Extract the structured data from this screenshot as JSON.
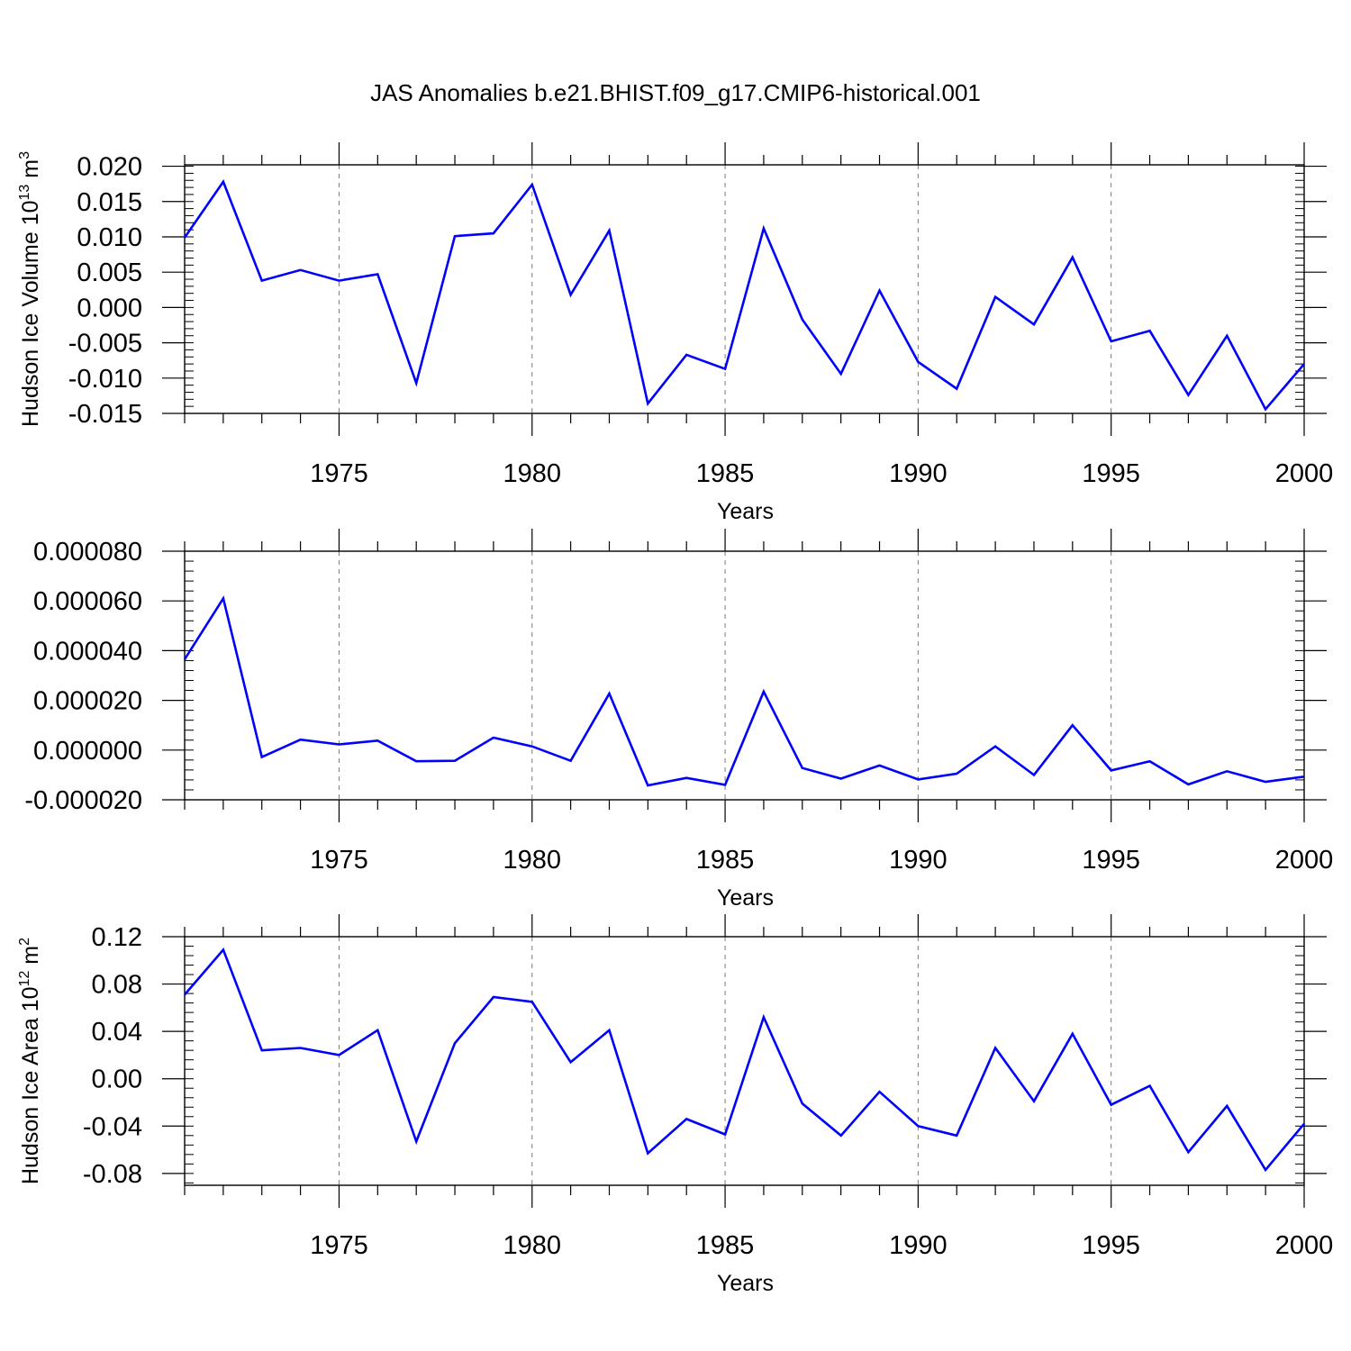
{
  "figure": {
    "title": "JAS Anomalies b.e21.BHIST.f09_g17.CMIP6-historical.001"
  },
  "chart_data": [
    {
      "type": "line",
      "ylabel": "Hudson Ice Volume 10",
      "ylabel_exp": "13",
      "ylabel_unit": " m",
      "ylabel_unit_exp": "3",
      "xlabel": "Years",
      "xlim": [
        1971,
        2000
      ],
      "ylim": [
        -0.015,
        0.0202
      ],
      "xticks": [
        1975,
        1980,
        1985,
        1990,
        1995,
        2000
      ],
      "xtick_labels": [
        "1975",
        "1980",
        "1985",
        "1990",
        "1995",
        "2000"
      ],
      "yticks": [
        0.02,
        0.015,
        0.01,
        0.005,
        0.0,
        -0.005,
        -0.01,
        -0.015
      ],
      "ytick_labels": [
        "0.020",
        "0.015",
        "0.010",
        "0.005",
        "0.000",
        "-0.005",
        "-0.010",
        "-0.015"
      ],
      "grid": "dashed vertical at major x ticks",
      "line_color": "#0000ff",
      "series": [
        {
          "x": [
            1971,
            1972,
            1973,
            1974,
            1975,
            1976,
            1977,
            1978,
            1979,
            1980,
            1981,
            1982,
            1983,
            1984,
            1985,
            1986,
            1987,
            1988,
            1989,
            1990,
            1991,
            1992,
            1993,
            1994,
            1995,
            1996,
            1997,
            1998,
            1999,
            2000
          ],
          "values": [
            0.0099,
            0.0178,
            0.0038,
            0.0053,
            0.0038,
            0.0047,
            -0.0107,
            0.0101,
            0.0105,
            0.0174,
            0.0018,
            0.0109,
            -0.0136,
            -0.0067,
            -0.0087,
            0.0112,
            -0.0017,
            -0.0094,
            0.0024,
            -0.0077,
            -0.0115,
            0.0015,
            -0.0024,
            0.0071,
            -0.0048,
            -0.0033,
            -0.0124,
            -0.004,
            -0.0144,
            -0.008
          ]
        }
      ]
    },
    {
      "type": "line",
      "ylabel": "",
      "xlabel": "Years",
      "xlim": [
        1971,
        2000
      ],
      "ylim": [
        -2e-05,
        8e-05
      ],
      "xticks": [
        1975,
        1980,
        1985,
        1990,
        1995,
        2000
      ],
      "xtick_labels": [
        "1975",
        "1980",
        "1985",
        "1990",
        "1995",
        "2000"
      ],
      "yticks": [
        8e-05,
        6e-05,
        4e-05,
        2e-05,
        0.0,
        -2e-05
      ],
      "ytick_labels": [
        "0.000080",
        "0.000060",
        "0.000040",
        "0.000020",
        "0.000000",
        "-0.000020"
      ],
      "grid": "dashed vertical at major x ticks",
      "line_color": "#0000ff",
      "series": [
        {
          "x": [
            1971,
            1972,
            1973,
            1974,
            1975,
            1976,
            1977,
            1978,
            1979,
            1980,
            1981,
            1982,
            1983,
            1984,
            1985,
            1986,
            1987,
            1988,
            1989,
            1990,
            1991,
            1992,
            1993,
            1994,
            1995,
            1996,
            1997,
            1998,
            1999,
            2000
          ],
          "values": [
            3.65e-05,
            6.1e-05,
            -2.8e-06,
            4.2e-06,
            2.3e-06,
            3.8e-06,
            -4.5e-06,
            -4.3e-06,
            5e-06,
            1.5e-06,
            -4.3e-06,
            2.27e-05,
            -1.42e-05,
            -1.12e-05,
            -1.4e-05,
            2.35e-05,
            -7.2e-06,
            -1.15e-05,
            -6.2e-06,
            -1.18e-05,
            -9.5e-06,
            1.5e-06,
            -1e-05,
            1e-05,
            -8.2e-06,
            -4.5e-06,
            -1.38e-05,
            -8.5e-06,
            -1.28e-05,
            -1.07e-05
          ]
        }
      ]
    },
    {
      "type": "line",
      "ylabel": "Hudson Ice Area 10",
      "ylabel_exp": "12",
      "ylabel_unit": " m",
      "ylabel_unit_exp": "2",
      "xlabel": "Years",
      "xlim": [
        1971,
        2000
      ],
      "ylim": [
        -0.09,
        0.12
      ],
      "xticks": [
        1975,
        1980,
        1985,
        1990,
        1995,
        2000
      ],
      "xtick_labels": [
        "1975",
        "1980",
        "1985",
        "1990",
        "1995",
        "2000"
      ],
      "yticks": [
        0.12,
        0.08,
        0.04,
        0.0,
        -0.04,
        -0.08
      ],
      "ytick_labels": [
        "0.12",
        "0.08",
        "0.04",
        "0.00",
        "-0.04",
        "-0.08"
      ],
      "grid": "dashed vertical at major x ticks",
      "line_color": "#0000ff",
      "series": [
        {
          "x": [
            1971,
            1972,
            1973,
            1974,
            1975,
            1976,
            1977,
            1978,
            1979,
            1980,
            1981,
            1982,
            1983,
            1984,
            1985,
            1986,
            1987,
            1988,
            1989,
            1990,
            1991,
            1992,
            1993,
            1994,
            1995,
            1996,
            1997,
            1998,
            1999,
            2000
          ],
          "values": [
            0.071,
            0.109,
            0.024,
            0.026,
            0.02,
            0.041,
            -0.053,
            0.03,
            0.069,
            0.065,
            0.014,
            0.041,
            -0.063,
            -0.034,
            -0.047,
            0.052,
            -0.021,
            -0.048,
            -0.011,
            -0.04,
            -0.048,
            0.026,
            -0.019,
            0.038,
            -0.022,
            -0.006,
            -0.062,
            -0.023,
            -0.077,
            -0.038
          ]
        }
      ]
    }
  ]
}
